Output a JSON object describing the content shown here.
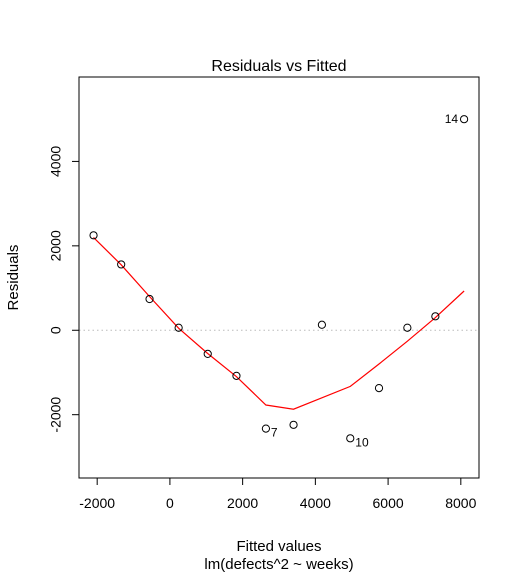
{
  "chart_data": {
    "type": "scatter",
    "title": "Residuals vs Fitted",
    "xlabel": "Fitted values",
    "xsublabel": "lm(defects^2 ~ weeks)",
    "ylabel": "Residuals",
    "xlim": [
      -2500,
      8500
    ],
    "ylim": [
      -3500,
      6000
    ],
    "xticks": [
      -2000,
      0,
      2000,
      4000,
      6000,
      8000
    ],
    "yticks": [
      -2000,
      0,
      2000,
      4000
    ],
    "xtick_labels": [
      "-2000",
      "0",
      "2000",
      "4000",
      "6000",
      "8000"
    ],
    "ytick_labels": [
      "-2000",
      "0",
      "2000",
      "4000"
    ],
    "points": [
      {
        "x": -2100,
        "y": 2250
      },
      {
        "x": -1340,
        "y": 1560
      },
      {
        "x": -560,
        "y": 740
      },
      {
        "x": 240,
        "y": 60
      },
      {
        "x": 1040,
        "y": -560
      },
      {
        "x": 1830,
        "y": -1080
      },
      {
        "x": 2640,
        "y": -2330,
        "label": "7"
      },
      {
        "x": 3400,
        "y": -2240
      },
      {
        "x": 4180,
        "y": 130
      },
      {
        "x": 4960,
        "y": -2560,
        "label": "10"
      },
      {
        "x": 5750,
        "y": -1370
      },
      {
        "x": 6530,
        "y": 60
      },
      {
        "x": 7300,
        "y": 330
      },
      {
        "x": 8090,
        "y": 5000,
        "label": "14"
      }
    ],
    "smooth_line": {
      "color": "#ff0000",
      "x": [
        -2100,
        -1340,
        -560,
        240,
        1040,
        1830,
        2640,
        3400,
        4960,
        5750,
        6530,
        7300,
        8090
      ],
      "y": [
        2200,
        1550,
        800,
        50,
        -550,
        -1100,
        -1770,
        -1870,
        -1330,
        -800,
        -260,
        300,
        930
      ]
    },
    "reference_line": {
      "y": 0,
      "color": "#bbbbbb",
      "style": "dotted"
    },
    "grid": false,
    "legend": "none"
  }
}
